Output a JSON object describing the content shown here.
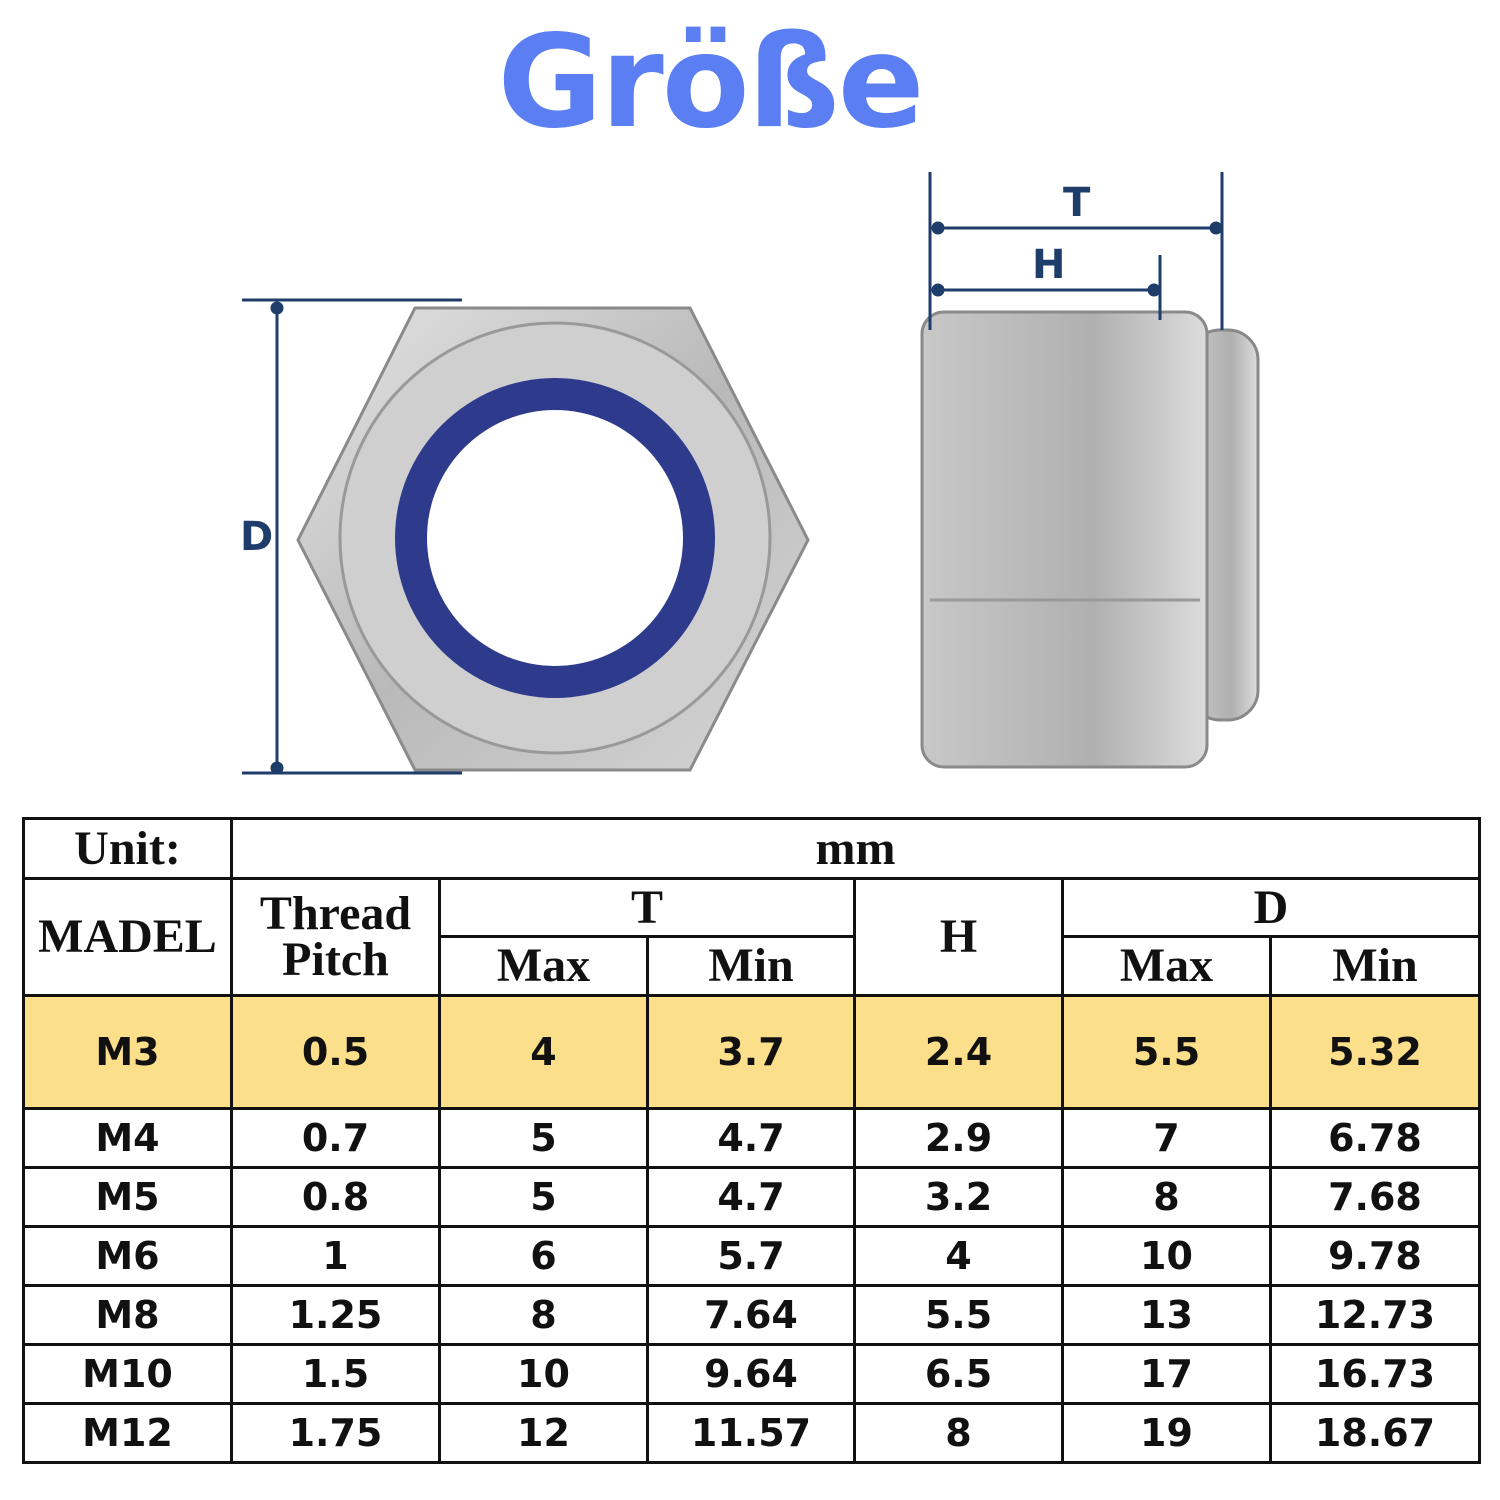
{
  "title": "Größe",
  "diagram": {
    "labels": {
      "D": "D",
      "T": "T",
      "H": "H"
    },
    "colors": {
      "title": "#5b7ff2",
      "dimension": "#1f3d6b",
      "nylon_ring": "#2e3a8c",
      "highlight_row": "#fbdf8b"
    }
  },
  "table": {
    "unit_label": "Unit:",
    "unit_value": "mm",
    "headers": {
      "model": "MADEL",
      "thread_pitch": "Thread Pitch",
      "t": "T",
      "h": "H",
      "d": "D",
      "max": "Max",
      "min": "Min"
    },
    "rows": [
      [
        "M3",
        "0.5",
        "4",
        "3.7",
        "2.4",
        "5.5",
        "5.32"
      ],
      [
        "M4",
        "0.7",
        "5",
        "4.7",
        "2.9",
        "7",
        "6.78"
      ],
      [
        "M5",
        "0.8",
        "5",
        "4.7",
        "3.2",
        "8",
        "7.68"
      ],
      [
        "M6",
        "1",
        "6",
        "5.7",
        "4",
        "10",
        "9.78"
      ],
      [
        "M8",
        "1.25",
        "8",
        "7.64",
        "5.5",
        "13",
        "12.73"
      ],
      [
        "M10",
        "1.5",
        "10",
        "9.64",
        "6.5",
        "17",
        "16.73"
      ],
      [
        "M12",
        "1.75",
        "12",
        "11.57",
        "8",
        "19",
        "18.67"
      ]
    ]
  }
}
